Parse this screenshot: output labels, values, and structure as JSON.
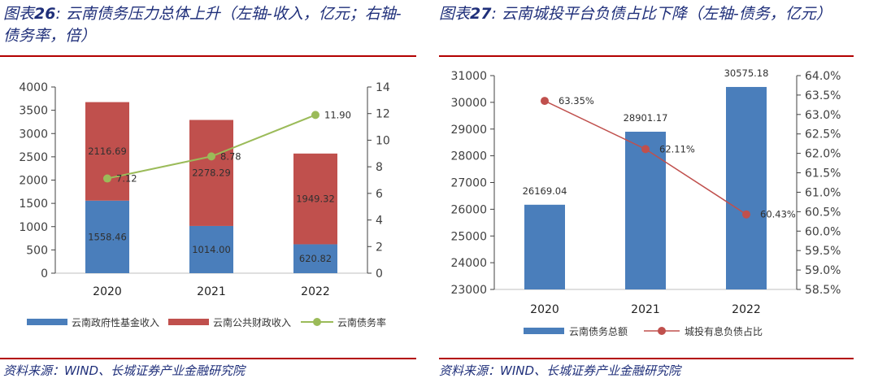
{
  "left": {
    "title_prefix": "图表",
    "title_number": "26",
    "title_text": ": 云南债务压力总体上升（左轴-收入，亿元；右轴-债务率，倍）",
    "source": "资料来源：WIND、长城证券产业金融研究院"
  },
  "right": {
    "title_prefix": "图表",
    "title_number": "27",
    "title_text": ": 云南城投平台负债占比下降（左轴-债务，亿元）",
    "source": "资料来源：WIND、长城证券产业金融研究院"
  },
  "colors": {
    "blue": "#4a7ebb",
    "red": "#c0504d",
    "green": "#9bbb59",
    "line_red": "#c0504d",
    "axis": "#404040",
    "rule": "#b30000",
    "title": "#1f2f7a"
  },
  "chart_data": [
    {
      "type": "bar",
      "stacked": true,
      "categories": [
        "2020",
        "2021",
        "2022"
      ],
      "series": [
        {
          "name": "云南政府性基金收入",
          "kind": "bar",
          "axis": "left",
          "values": [
            1558.46,
            1014.0,
            620.82
          ],
          "labels": [
            "1558.46",
            "1014.00",
            "620.82"
          ]
        },
        {
          "name": "云南公共财政收入",
          "kind": "bar",
          "axis": "left",
          "values": [
            2116.69,
            2278.29,
            1949.32
          ],
          "labels": [
            "2116.69",
            "2278.29",
            "1949.32"
          ]
        },
        {
          "name": "云南债务率",
          "kind": "line",
          "axis": "right",
          "values": [
            7.12,
            8.78,
            11.9
          ],
          "labels": [
            "7.12",
            "8.78",
            "11.90"
          ]
        }
      ],
      "y_left": {
        "min": 0,
        "max": 4000,
        "ticks": [
          "0",
          "500",
          "1000",
          "1500",
          "2000",
          "2500",
          "3000",
          "3500",
          "4000"
        ]
      },
      "y_right": {
        "min": 0,
        "max": 14,
        "ticks": [
          "0",
          "2",
          "4",
          "6",
          "8",
          "10",
          "12",
          "14"
        ]
      },
      "legend_position": "bottom"
    },
    {
      "type": "bar",
      "categories": [
        "2020",
        "2021",
        "2022"
      ],
      "series": [
        {
          "name": "云南债务总额",
          "kind": "bar",
          "axis": "left",
          "values": [
            26169.04,
            28901.17,
            30575.18
          ],
          "labels": [
            "26169.04",
            "28901.17",
            "30575.18"
          ]
        },
        {
          "name": "城投有息负债占比",
          "kind": "line",
          "axis": "right",
          "values": [
            63.35,
            62.11,
            60.43
          ],
          "labels": [
            "63.35%",
            "62.11%",
            "60.43%"
          ]
        }
      ],
      "y_left": {
        "min": 23000,
        "max": 31000,
        "ticks": [
          "23000",
          "24000",
          "25000",
          "26000",
          "27000",
          "28000",
          "29000",
          "30000",
          "31000"
        ]
      },
      "y_right": {
        "min": 58.5,
        "max": 64.0,
        "ticks": [
          "58.5%",
          "59.0%",
          "59.5%",
          "60.0%",
          "60.5%",
          "61.0%",
          "61.5%",
          "62.0%",
          "62.5%",
          "63.0%",
          "63.5%",
          "64.0%"
        ]
      },
      "legend_position": "bottom"
    }
  ]
}
